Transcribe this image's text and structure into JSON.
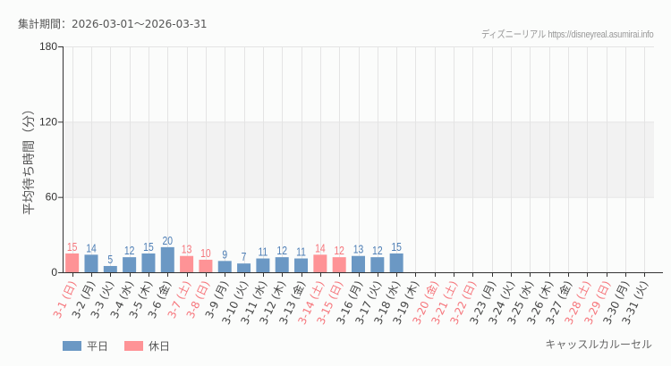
{
  "header": {
    "period": "集計期間：2026-03-01～2026-03-31",
    "credit": "ディズニーリアル https://disneyreal.asumirai.info"
  },
  "legend": {
    "weekday_label": "平日",
    "holiday_label": "休日"
  },
  "attraction_name": "キャッスルカルーセル",
  "colors": {
    "weekday": "#6b98c4",
    "holiday": "#fe9396",
    "weekday_text": "#4d7eb5",
    "holiday_text": "#f6757b",
    "band": "#f2f2f2",
    "grid": "#e4e4e4"
  },
  "chart_data": {
    "type": "bar",
    "title": "",
    "xlabel": "",
    "ylabel": "平均待ち時間（分）",
    "ylim": [
      0,
      180
    ],
    "yticks": [
      0,
      60,
      120,
      180
    ],
    "shaded_band": [
      60,
      120
    ],
    "grid": true,
    "legend_position": "bottom-left",
    "categories": [
      "3-1 (日)",
      "3-2 (月)",
      "3-3 (火)",
      "3-4 (水)",
      "3-5 (木)",
      "3-6 (金)",
      "3-7 (土)",
      "3-8 (日)",
      "3-9 (月)",
      "3-10 (火)",
      "3-11 (水)",
      "3-12 (木)",
      "3-13 (金)",
      "3-14 (土)",
      "3-15 (日)",
      "3-16 (月)",
      "3-17 (火)",
      "3-18 (水)",
      "3-19 (木)",
      "3-20 (金)",
      "3-21 (土)",
      "3-22 (日)",
      "3-23 (月)",
      "3-24 (火)",
      "3-25 (水)",
      "3-26 (木)",
      "3-27 (金)",
      "3-28 (土)",
      "3-29 (日)",
      "3-30 (月)",
      "3-31 (火)"
    ],
    "holiday_flags": [
      true,
      false,
      false,
      false,
      false,
      false,
      true,
      true,
      false,
      false,
      false,
      false,
      false,
      true,
      true,
      false,
      false,
      false,
      false,
      true,
      true,
      true,
      false,
      false,
      false,
      false,
      false,
      true,
      true,
      false,
      false
    ],
    "series": [
      {
        "name": "平日",
        "values": [
          null,
          14,
          5,
          12,
          15,
          20,
          null,
          null,
          9,
          7,
          11,
          12,
          11,
          null,
          null,
          13,
          12,
          15,
          null,
          null,
          null,
          null,
          null,
          null,
          null,
          null,
          null,
          null,
          null,
          null,
          null
        ]
      },
      {
        "name": "休日",
        "values": [
          15,
          null,
          null,
          null,
          null,
          null,
          13,
          10,
          null,
          null,
          null,
          null,
          null,
          14,
          12,
          null,
          null,
          null,
          null,
          null,
          null,
          null,
          null,
          null,
          null,
          null,
          null,
          null,
          null,
          null,
          null
        ]
      }
    ],
    "values": [
      15,
      14,
      5,
      12,
      15,
      20,
      13,
      10,
      9,
      7,
      11,
      12,
      11,
      14,
      12,
      13,
      12,
      15,
      null,
      null,
      null,
      null,
      null,
      null,
      null,
      null,
      null,
      null,
      null,
      null,
      null
    ]
  }
}
